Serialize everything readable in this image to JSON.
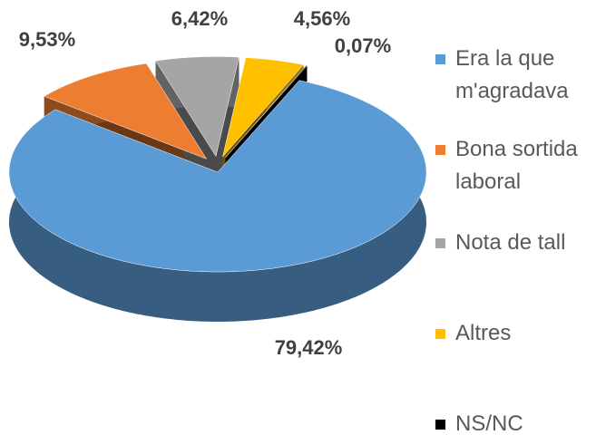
{
  "chart_data": {
    "type": "pie3d",
    "categories": [
      "Era la que m'agradava",
      "Bona sortida laboral",
      "Nota de tall",
      "Altres",
      "NS/NC"
    ],
    "values": [
      79.42,
      9.53,
      6.42,
      4.56,
      0.07
    ],
    "value_labels": [
      "79,42%",
      "9,53%",
      "6,42%",
      "4,56%",
      "0,07%"
    ],
    "colors": [
      "#5b9bd5",
      "#ed7d31",
      "#a5a5a5",
      "#ffc000",
      "#000000"
    ],
    "legend": "right"
  }
}
